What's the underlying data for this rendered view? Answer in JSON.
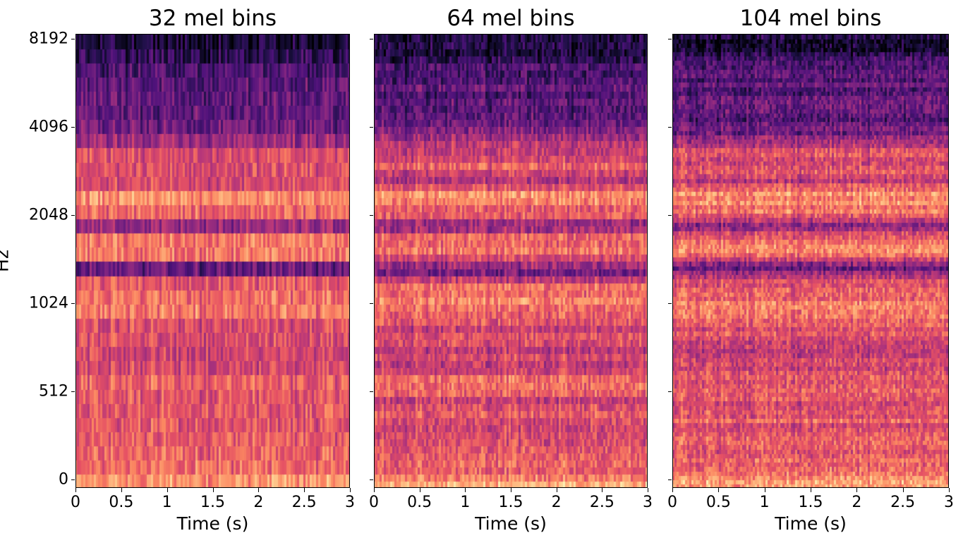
{
  "chart_data": [
    {
      "type": "heatmap",
      "title": "32 mel bins",
      "mel_bins": 32,
      "xlabel": "Time (s)",
      "ylabel": "Hz",
      "xlim": [
        0,
        3
      ],
      "xticks": [
        "0",
        "0.5",
        "1",
        "1.5",
        "2",
        "2.5",
        "3"
      ],
      "yticks": [
        "0",
        "512",
        "1024",
        "2048",
        "4096",
        "8192"
      ],
      "show_ytick_labels": true,
      "colormap": "magma"
    },
    {
      "type": "heatmap",
      "title": "64 mel bins",
      "mel_bins": 64,
      "xlabel": "Time (s)",
      "ylabel": "",
      "xlim": [
        0,
        3
      ],
      "xticks": [
        "0",
        "0.5",
        "1",
        "1.5",
        "2",
        "2.5",
        "3"
      ],
      "yticks": [
        "0",
        "512",
        "1024",
        "2048",
        "4096",
        "8192"
      ],
      "show_ytick_labels": false,
      "colormap": "magma"
    },
    {
      "type": "heatmap",
      "title": "104 mel bins",
      "mel_bins": 104,
      "xlabel": "Time (s)",
      "ylabel": "",
      "xlim": [
        0,
        3
      ],
      "xticks": [
        "0",
        "0.5",
        "1",
        "1.5",
        "2",
        "2.5",
        "3"
      ],
      "yticks": [
        "0",
        "512",
        "1024",
        "2048",
        "4096",
        "8192"
      ],
      "show_ytick_labels": false,
      "colormap": "magma"
    }
  ],
  "band_profile_low_to_high": [
    0.85,
    0.7,
    0.68,
    0.65,
    0.62,
    0.65,
    0.6,
    0.68,
    0.6,
    0.55,
    0.6,
    0.58,
    0.72,
    0.7,
    0.65,
    0.3,
    0.72,
    0.7,
    0.4,
    0.7,
    0.78,
    0.55,
    0.62,
    0.6,
    0.38,
    0.3,
    0.28,
    0.3,
    0.27,
    0.22,
    0.12,
    0.08
  ]
}
